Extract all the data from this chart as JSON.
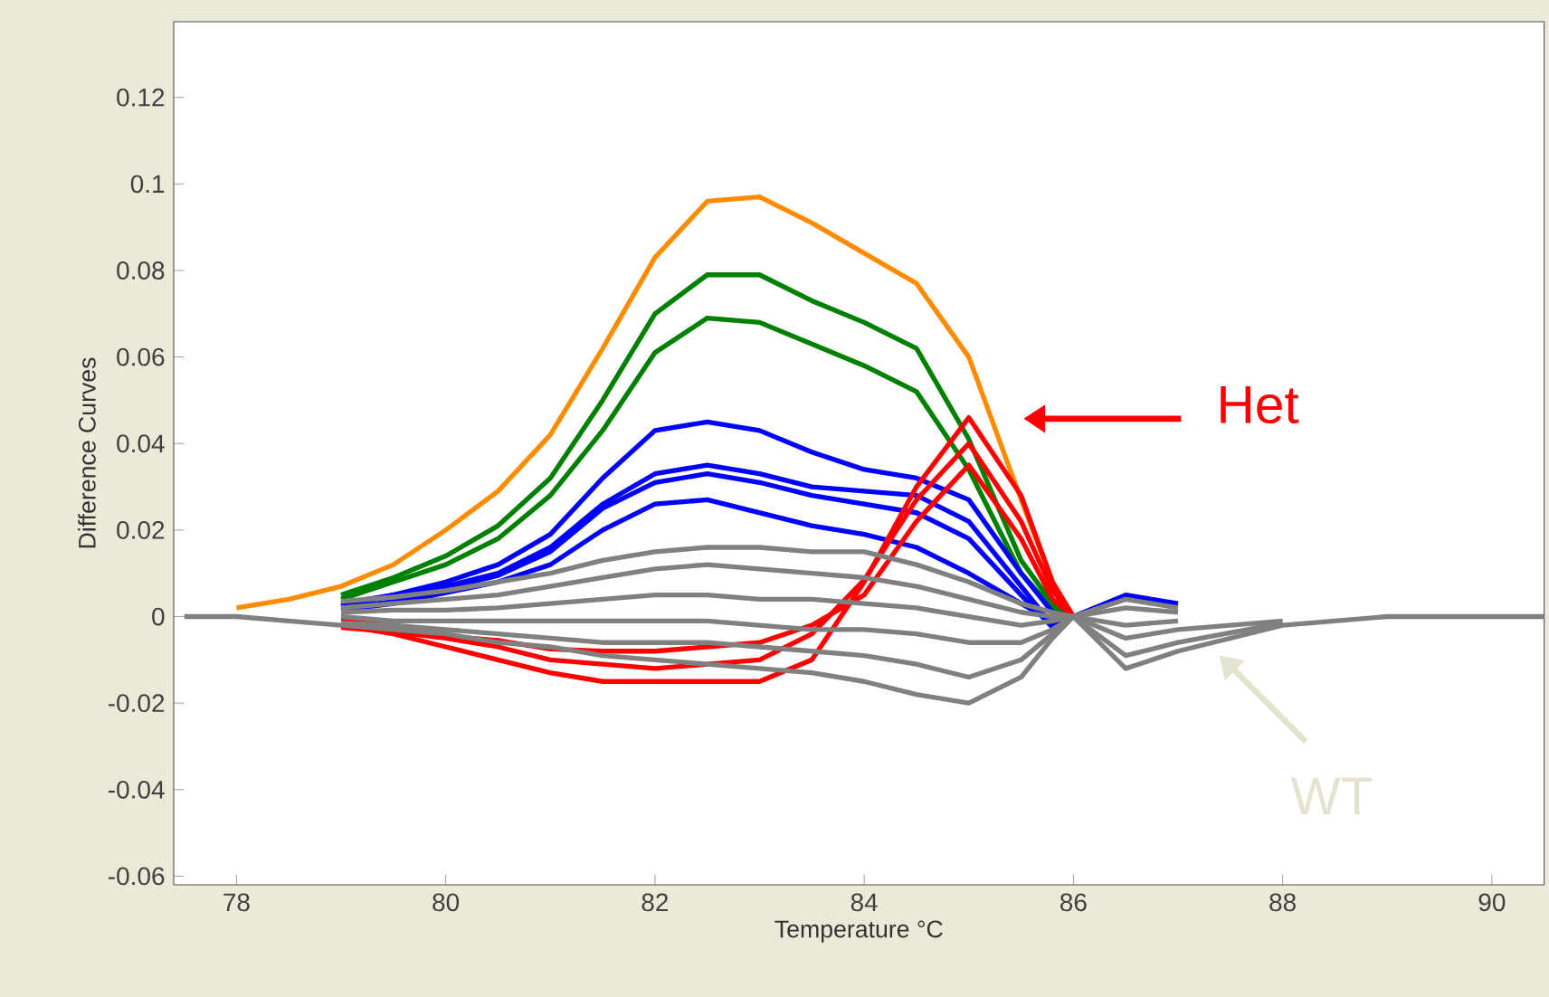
{
  "chart_data": {
    "type": "line",
    "xlabel": "Temperature °C",
    "ylabel": "Difference Curves",
    "x": [
      77.5,
      78,
      78.5,
      79,
      79.5,
      80,
      80.5,
      81,
      81.5,
      82,
      82.5,
      83,
      83.5,
      84,
      84.5,
      85,
      85.5,
      85.8,
      86,
      86.5,
      87,
      88,
      89,
      90,
      90.5
    ],
    "series": [
      {
        "color": "#ff8c00",
        "values": [
          null,
          0.002,
          0.004,
          0.007,
          0.012,
          0.02,
          0.029,
          0.042,
          0.062,
          0.083,
          0.096,
          0.097,
          0.091,
          0.084,
          0.077,
          0.06,
          0.027,
          0.008,
          0,
          null,
          null,
          null,
          null,
          null,
          null
        ]
      },
      {
        "color": "#008000",
        "values": [
          null,
          null,
          null,
          0.005,
          0.009,
          0.014,
          0.021,
          0.032,
          0.05,
          0.07,
          0.079,
          0.079,
          0.073,
          0.068,
          0.062,
          0.041,
          0.013,
          0.003,
          0,
          null,
          null,
          null,
          null,
          null,
          null
        ]
      },
      {
        "color": "#008000",
        "values": [
          null,
          null,
          null,
          0.004,
          0.008,
          0.012,
          0.018,
          0.028,
          0.043,
          0.061,
          0.069,
          0.068,
          0.063,
          0.058,
          0.052,
          0.034,
          0.01,
          0.002,
          0,
          null,
          null,
          null,
          null,
          null,
          null
        ]
      },
      {
        "color": "#0000ff",
        "values": [
          null,
          null,
          null,
          0.003,
          0.005,
          0.008,
          0.012,
          0.019,
          0.032,
          0.043,
          0.045,
          0.043,
          0.038,
          0.034,
          0.032,
          0.027,
          0.01,
          0.001,
          0,
          0.005,
          0.003,
          null,
          null,
          null,
          null
        ]
      },
      {
        "color": "#0000ff",
        "values": [
          null,
          null,
          null,
          0.0025,
          0.005,
          0.007,
          0.01,
          0.016,
          0.026,
          0.033,
          0.035,
          0.033,
          0.03,
          0.029,
          0.028,
          0.022,
          0.007,
          -0.002,
          0,
          null,
          null,
          null,
          null,
          null,
          null
        ]
      },
      {
        "color": "#0000ff",
        "values": [
          null,
          null,
          null,
          0.002,
          0.0035,
          0.0065,
          0.0095,
          0.015,
          0.025,
          0.031,
          0.033,
          0.031,
          0.028,
          0.026,
          0.024,
          0.018,
          0.005,
          -0.0025,
          0,
          null,
          null,
          null,
          null,
          null,
          null
        ]
      },
      {
        "color": "#0000ff",
        "values": [
          null,
          null,
          null,
          0.0015,
          0.003,
          0.0055,
          0.008,
          0.012,
          0.02,
          0.026,
          0.027,
          0.024,
          0.021,
          0.019,
          0.016,
          0.01,
          0.003,
          -0.001,
          0,
          null,
          null,
          null,
          null,
          null,
          null
        ]
      },
      {
        "color": "#ff0000",
        "values": [
          null,
          null,
          null,
          -0.002,
          -0.004,
          -0.007,
          -0.01,
          -0.013,
          -0.015,
          -0.015,
          -0.015,
          -0.015,
          -0.01,
          0.008,
          0.03,
          0.046,
          0.028,
          0.008,
          0,
          null,
          null,
          null,
          null,
          null,
          null
        ]
      },
      {
        "color": "#ff0000",
        "values": [
          null,
          null,
          null,
          -0.0025,
          -0.0035,
          -0.005,
          -0.007,
          -0.01,
          -0.011,
          -0.012,
          -0.011,
          -0.01,
          -0.004,
          0.0085,
          0.027,
          0.04,
          0.022,
          0.006,
          0,
          null,
          null,
          null,
          null,
          null,
          null
        ]
      },
      {
        "color": "#ff0000",
        "values": [
          null,
          null,
          null,
          -0.001,
          -0.002,
          -0.0045,
          -0.0055,
          -0.0075,
          -0.008,
          -0.008,
          -0.007,
          -0.006,
          -0.002,
          0.005,
          0.022,
          0.035,
          0.018,
          0.004,
          0,
          null,
          null,
          null,
          null,
          null,
          null
        ]
      },
      {
        "color": "#808080",
        "values": [
          null,
          null,
          null,
          0.0035,
          0.0045,
          0.006,
          0.008,
          0.01,
          0.013,
          0.015,
          0.016,
          0.016,
          0.015,
          0.015,
          0.012,
          0.008,
          0.003,
          0.001,
          0,
          0.004,
          0.002,
          null,
          null,
          null,
          null
        ]
      },
      {
        "color": "#808080",
        "values": [
          null,
          null,
          null,
          0.002,
          0.003,
          0.004,
          0.005,
          0.007,
          0.009,
          0.011,
          0.012,
          0.011,
          0.01,
          0.009,
          0.007,
          0.004,
          0.001,
          0,
          0,
          0.002,
          0.001,
          null,
          null,
          null,
          null
        ]
      },
      {
        "color": "#808080",
        "values": [
          null,
          null,
          null,
          0.001,
          0.0015,
          0.0015,
          0.002,
          0.003,
          0.004,
          0.005,
          0.005,
          0.004,
          0.004,
          0.003,
          0.002,
          0,
          -0.002,
          -0.001,
          0,
          -0.002,
          -0.001,
          null,
          null,
          null,
          null
        ]
      },
      {
        "color": "#808080",
        "values": [
          null,
          null,
          null,
          0,
          -0.001,
          -0.001,
          -0.001,
          -0.001,
          -0.001,
          -0.001,
          -0.001,
          -0.002,
          -0.003,
          -0.003,
          -0.004,
          -0.006,
          -0.006,
          -0.003,
          0,
          -0.005,
          -0.003,
          -0.001,
          null,
          null,
          null
        ]
      },
      {
        "color": "#808080",
        "values": [
          null,
          null,
          null,
          -0.0015,
          -0.002,
          -0.003,
          -0.004,
          -0.005,
          -0.006,
          -0.006,
          -0.006,
          -0.007,
          -0.008,
          -0.009,
          -0.011,
          -0.014,
          -0.01,
          -0.004,
          0,
          -0.009,
          -0.006,
          -0.0015,
          null,
          null,
          null
        ]
      },
      {
        "color": "#808080",
        "values": [
          0,
          0,
          -0.001,
          -0.002,
          -0.003,
          -0.004,
          -0.006,
          -0.007,
          -0.009,
          -0.01,
          -0.011,
          -0.012,
          -0.013,
          -0.015,
          -0.018,
          -0.02,
          -0.014,
          -0.005,
          0,
          -0.012,
          -0.008,
          -0.002,
          0,
          0,
          0
        ]
      }
    ],
    "xlim": [
      77.4,
      90.5
    ],
    "ylim": [
      -0.062,
      0.1375
    ],
    "xticks": [
      78,
      80,
      82,
      84,
      86,
      88,
      90
    ],
    "yticks": [
      -0.06,
      -0.04,
      -0.02,
      0,
      0.02,
      0.04,
      0.06,
      0.08,
      0.1,
      0.12
    ],
    "marker": "none",
    "line_style": "solid",
    "annotations": [
      "Het",
      "WT"
    ]
  }
}
